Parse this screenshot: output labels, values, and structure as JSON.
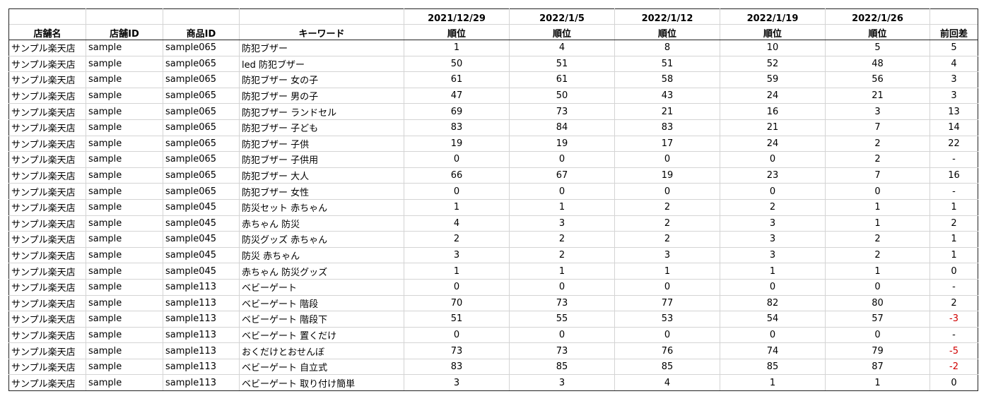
{
  "headers": {
    "store_name": "店舗名",
    "store_id": "店舗ID",
    "product_id": "商品ID",
    "keyword": "キーワード",
    "dates": [
      "2021/12/29",
      "2022/1/5",
      "2022/1/12",
      "2022/1/19",
      "2022/1/26"
    ],
    "rank": "順位",
    "diff": "前回差"
  },
  "rows": [
    {
      "store": "サンプル楽天店",
      "sid": "sample",
      "pid": "sample065",
      "kw": "防犯ブザー",
      "ranks": [
        "1",
        "4",
        "8",
        "10",
        "5"
      ],
      "diff": "5"
    },
    {
      "store": "サンプル楽天店",
      "sid": "sample",
      "pid": "sample065",
      "kw": "led 防犯ブザー",
      "ranks": [
        "50",
        "51",
        "51",
        "52",
        "48"
      ],
      "diff": "4"
    },
    {
      "store": "サンプル楽天店",
      "sid": "sample",
      "pid": "sample065",
      "kw": "防犯ブザー 女の子",
      "ranks": [
        "61",
        "61",
        "58",
        "59",
        "56"
      ],
      "diff": "3"
    },
    {
      "store": "サンプル楽天店",
      "sid": "sample",
      "pid": "sample065",
      "kw": "防犯ブザー 男の子",
      "ranks": [
        "47",
        "50",
        "43",
        "24",
        "21"
      ],
      "diff": "3"
    },
    {
      "store": "サンプル楽天店",
      "sid": "sample",
      "pid": "sample065",
      "kw": "防犯ブザー ランドセル",
      "ranks": [
        "69",
        "73",
        "21",
        "16",
        "3"
      ],
      "diff": "13"
    },
    {
      "store": "サンプル楽天店",
      "sid": "sample",
      "pid": "sample065",
      "kw": "防犯ブザー 子ども",
      "ranks": [
        "83",
        "84",
        "83",
        "21",
        "7"
      ],
      "diff": "14"
    },
    {
      "store": "サンプル楽天店",
      "sid": "sample",
      "pid": "sample065",
      "kw": "防犯ブザー 子供",
      "ranks": [
        "19",
        "19",
        "17",
        "24",
        "2"
      ],
      "diff": "22"
    },
    {
      "store": "サンプル楽天店",
      "sid": "sample",
      "pid": "sample065",
      "kw": "防犯ブザー 子供用",
      "ranks": [
        "0",
        "0",
        "0",
        "0",
        "2"
      ],
      "diff": "-"
    },
    {
      "store": "サンプル楽天店",
      "sid": "sample",
      "pid": "sample065",
      "kw": "防犯ブザー 大人",
      "ranks": [
        "66",
        "67",
        "19",
        "23",
        "7"
      ],
      "diff": "16"
    },
    {
      "store": "サンプル楽天店",
      "sid": "sample",
      "pid": "sample065",
      "kw": "防犯ブザー 女性",
      "ranks": [
        "0",
        "0",
        "0",
        "0",
        "0"
      ],
      "diff": "-"
    },
    {
      "store": "サンプル楽天店",
      "sid": "sample",
      "pid": "sample045",
      "kw": "防災セット 赤ちゃん",
      "ranks": [
        "1",
        "1",
        "2",
        "2",
        "1"
      ],
      "diff": "1"
    },
    {
      "store": "サンプル楽天店",
      "sid": "sample",
      "pid": "sample045",
      "kw": "赤ちゃん 防災",
      "ranks": [
        "4",
        "3",
        "2",
        "3",
        "1"
      ],
      "diff": "2"
    },
    {
      "store": "サンプル楽天店",
      "sid": "sample",
      "pid": "sample045",
      "kw": "防災グッズ 赤ちゃん",
      "ranks": [
        "2",
        "2",
        "2",
        "3",
        "2"
      ],
      "diff": "1"
    },
    {
      "store": "サンプル楽天店",
      "sid": "sample",
      "pid": "sample045",
      "kw": "防災 赤ちゃん",
      "ranks": [
        "3",
        "2",
        "3",
        "3",
        "2"
      ],
      "diff": "1"
    },
    {
      "store": "サンプル楽天店",
      "sid": "sample",
      "pid": "sample045",
      "kw": "赤ちゃん 防災グッズ",
      "ranks": [
        "1",
        "1",
        "1",
        "1",
        "1"
      ],
      "diff": "0"
    },
    {
      "store": "サンプル楽天店",
      "sid": "sample",
      "pid": "sample113",
      "kw": "ベビーゲート",
      "ranks": [
        "0",
        "0",
        "0",
        "0",
        "0"
      ],
      "diff": "-"
    },
    {
      "store": "サンプル楽天店",
      "sid": "sample",
      "pid": "sample113",
      "kw": "ベビーゲート 階段",
      "ranks": [
        "70",
        "73",
        "77",
        "82",
        "80"
      ],
      "diff": "2"
    },
    {
      "store": "サンプル楽天店",
      "sid": "sample",
      "pid": "sample113",
      "kw": "ベビーゲート 階段下",
      "ranks": [
        "51",
        "55",
        "53",
        "54",
        "57"
      ],
      "diff": "-3",
      "negative": true
    },
    {
      "store": "サンプル楽天店",
      "sid": "sample",
      "pid": "sample113",
      "kw": "ベビーゲート 置くだけ",
      "ranks": [
        "0",
        "0",
        "0",
        "0",
        "0"
      ],
      "diff": "-"
    },
    {
      "store": "サンプル楽天店",
      "sid": "sample",
      "pid": "sample113",
      "kw": "おくだけとおせんぼ",
      "ranks": [
        "73",
        "73",
        "76",
        "74",
        "79"
      ],
      "diff": "-5",
      "negative": true
    },
    {
      "store": "サンプル楽天店",
      "sid": "sample",
      "pid": "sample113",
      "kw": "ベビーゲート 自立式",
      "ranks": [
        "83",
        "85",
        "85",
        "85",
        "87"
      ],
      "diff": "-2",
      "negative": true
    },
    {
      "store": "サンプル楽天店",
      "sid": "sample",
      "pid": "sample113",
      "kw": "ベビーゲート 取り付け簡単",
      "ranks": [
        "3",
        "3",
        "4",
        "1",
        "1"
      ],
      "diff": "0"
    }
  ],
  "colors": {
    "negative": "#d00000",
    "border": "#222222",
    "grid": "#d4d4d4"
  }
}
